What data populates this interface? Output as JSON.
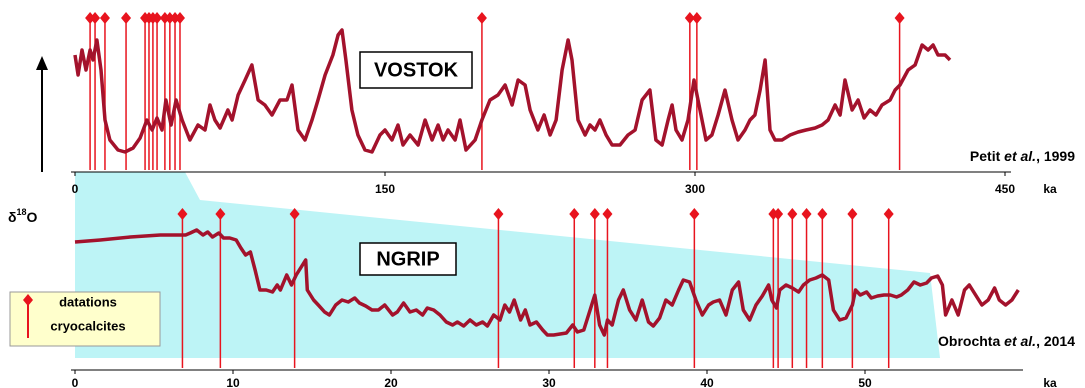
{
  "legend": {
    "label": [
      "datations",
      "cryocalcites"
    ],
    "color": "#e8141e"
  },
  "y_label": {
    "symbol": "δ",
    "superscript": "18",
    "element": "O"
  },
  "chart_data": [
    {
      "type": "line",
      "title": "VOSTOK",
      "source": {
        "author": "Petit ",
        "etal": "et al.",
        "year": ", 1999"
      },
      "x_unit": "ka",
      "color": "#a3122c",
      "xlim": [
        0,
        450
      ],
      "xticks": [
        0,
        150,
        300,
        450
      ],
      "ylim": [
        0,
        140
      ],
      "x": [
        0,
        1.5,
        3.4,
        5.3,
        7.3,
        8.7,
        10.6,
        12.6,
        14.5,
        16.9,
        20.8,
        24.2,
        28.1,
        31.5,
        34.8,
        37.3,
        39.7,
        42.1,
        44.0,
        46.5,
        48.9,
        51.8,
        55.6,
        59.5,
        62.9,
        65.3,
        67.7,
        70.2,
        74.0,
        76.0,
        78.9,
        82.3,
        85.6,
        88.6,
        91.9,
        95.3,
        99.2,
        102.6,
        105.0,
        107.9,
        111.3,
        114.7,
        117.6,
        121.0,
        124.8,
        127.3,
        129.2,
        131.1,
        134.0,
        136.9,
        140.3,
        143.7,
        147.6,
        150.0,
        153.4,
        156.3,
        158.7,
        162.1,
        166.0,
        169.4,
        172.8,
        175.7,
        178.1,
        180.5,
        183.9,
        186.3,
        189.2,
        193.6,
        196.9,
        200.8,
        204.7,
        208.1,
        211.5,
        214.4,
        217.8,
        220.2,
        224.0,
        227.0,
        229.9,
        232.8,
        235.7,
        238.6,
        240.5,
        243.4,
        246.8,
        249.2,
        251.6,
        254.0,
        257.0,
        259.9,
        263.7,
        267.6,
        271.0,
        274.4,
        278.2,
        281.1,
        284.1,
        287.0,
        288.9,
        290.8,
        293.7,
        296.6,
        299.5,
        302.4,
        305.3,
        308.2,
        311.2,
        314.5,
        317.9,
        320.8,
        324.2,
        326.6,
        329.0,
        331.5,
        333.9,
        336.3,
        338.7,
        342.1,
        346.0,
        349.9,
        353.7,
        358.1,
        361.5,
        364.4,
        367.8,
        370.2,
        372.6,
        376.0,
        378.9,
        381.8,
        384.7,
        387.6,
        390.5,
        394.4,
        396.8,
        399.2,
        403.1,
        406.5,
        409.9,
        412.8,
        415.2,
        417.6,
        421.0,
        423.4
      ],
      "values": [
        105,
        85,
        110,
        90,
        110,
        100,
        120,
        90,
        40,
        20,
        10,
        8,
        12,
        22,
        40,
        30,
        42,
        30,
        60,
        35,
        60,
        40,
        20,
        35,
        30,
        55,
        40,
        32,
        50,
        40,
        65,
        80,
        95,
        60,
        55,
        45,
        60,
        60,
        75,
        30,
        20,
        40,
        60,
        85,
        105,
        125,
        130,
        100,
        50,
        25,
        10,
        8,
        25,
        30,
        20,
        35,
        15,
        25,
        15,
        40,
        20,
        35,
        20,
        30,
        20,
        40,
        10,
        20,
        40,
        60,
        65,
        75,
        55,
        80,
        75,
        50,
        30,
        45,
        25,
        40,
        90,
        120,
        100,
        40,
        25,
        35,
        30,
        40,
        25,
        15,
        15,
        25,
        30,
        60,
        70,
        20,
        15,
        40,
        55,
        30,
        20,
        40,
        80,
        50,
        20,
        25,
        45,
        70,
        40,
        20,
        30,
        40,
        45,
        70,
        100,
        30,
        20,
        20,
        25,
        28,
        30,
        32,
        35,
        40,
        55,
        45,
        80,
        50,
        60,
        42,
        50,
        45,
        55,
        60,
        70,
        75,
        90,
        95,
        115,
        110,
        115,
        105,
        105,
        100
      ],
      "datations": [
        7.3,
        9.7,
        14.5,
        24.7,
        33.9,
        35.8,
        37.7,
        39.7,
        43.5,
        45.9,
        48.4,
        50.8,
        196.9,
        297.5,
        300.9,
        399.0
      ]
    },
    {
      "type": "line",
      "title": "NGRIP",
      "source": {
        "author": "Obrochta ",
        "etal": "et al.",
        "year": ", 2014"
      },
      "x_unit": "ka",
      "color": "#a3122c",
      "xlim": [
        0,
        60
      ],
      "xticks": [
        0,
        10,
        20,
        30,
        40,
        50
      ],
      "ylim": [
        0,
        140
      ],
      "x": [
        0,
        1.6,
        3.5,
        5.4,
        7.0,
        7.3,
        7.7,
        8.1,
        8.4,
        8.7,
        9.1,
        9.4,
        9.8,
        10.2,
        10.5,
        10.8,
        11.1,
        11.4,
        11.7,
        12.1,
        12.5,
        12.8,
        13.0,
        13.4,
        13.7,
        14.0,
        14.4,
        14.6,
        14.7,
        15.1,
        15.4,
        15.8,
        16.1,
        16.5,
        16.9,
        17.3,
        17.7,
        18.0,
        18.4,
        18.8,
        19.2,
        19.6,
        20.1,
        20.4,
        20.8,
        21.2,
        21.6,
        22.0,
        22.3,
        22.7,
        23.1,
        23.5,
        23.9,
        24.2,
        24.6,
        25.0,
        25.4,
        25.8,
        26.1,
        26.5,
        26.9,
        27.2,
        27.5,
        27.8,
        28.2,
        28.5,
        28.8,
        29.2,
        29.6,
        29.9,
        30.3,
        30.7,
        31.1,
        31.5,
        31.8,
        32.2,
        32.6,
        32.9,
        33.2,
        33.5,
        33.7,
        34.0,
        34.4,
        34.7,
        35.1,
        35.5,
        35.9,
        36.3,
        36.6,
        37.0,
        37.4,
        37.8,
        38.2,
        38.5,
        38.9,
        39.3,
        39.7,
        40.1,
        40.4,
        40.8,
        41.2,
        41.6,
        42.0,
        42.3,
        42.7,
        43.1,
        43.5,
        43.9,
        44.1,
        44.4,
        44.6,
        45.0,
        45.4,
        45.8,
        46.1,
        46.5,
        46.9,
        47.3,
        47.7,
        48.0,
        48.4,
        48.8,
        49.2,
        49.4,
        49.7,
        50.1,
        50.4,
        50.8,
        51.2,
        51.6,
        52.0,
        52.3,
        52.7,
        53.1,
        53.5,
        53.9,
        54.2,
        54.6,
        54.9,
        55.1,
        55.5,
        55.9,
        56.3,
        56.6,
        57.0,
        57.4,
        57.8,
        58.2,
        58.5,
        58.9,
        59.3,
        59.7
      ],
      "values": [
        113,
        115,
        118,
        120,
        120,
        122,
        125,
        120,
        123,
        118,
        122,
        117,
        117,
        115,
        107,
        100,
        103,
        85,
        65,
        65,
        63,
        70,
        65,
        80,
        70,
        80,
        90,
        95,
        65,
        55,
        50,
        43,
        40,
        50,
        55,
        53,
        57,
        52,
        49,
        45,
        45,
        50,
        40,
        43,
        52,
        43,
        45,
        40,
        47,
        45,
        40,
        33,
        30,
        33,
        29,
        35,
        30,
        33,
        29,
        40,
        35,
        50,
        43,
        55,
        35,
        45,
        30,
        33,
        25,
        20,
        20,
        21,
        22,
        30,
        23,
        25,
        45,
        60,
        30,
        20,
        35,
        30,
        55,
        65,
        45,
        35,
        55,
        33,
        29,
        37,
        55,
        50,
        65,
        75,
        73,
        55,
        40,
        50,
        53,
        55,
        40,
        65,
        73,
        45,
        35,
        50,
        59,
        70,
        55,
        47,
        65,
        70,
        67,
        63,
        70,
        75,
        77,
        80,
        75,
        45,
        35,
        37,
        50,
        65,
        60,
        63,
        57,
        59,
        60,
        60,
        58,
        60,
        65,
        73,
        70,
        72,
        77,
        79,
        70,
        40,
        55,
        40,
        65,
        70,
        60,
        50,
        55,
        67,
        55,
        50,
        55,
        65
      ],
      "datations": [
        6.8,
        9.2,
        13.9,
        26.8,
        31.6,
        32.9,
        33.7,
        39.2,
        44.2,
        44.5,
        45.4,
        46.3,
        47.3,
        49.2,
        51.5
      ]
    }
  ]
}
